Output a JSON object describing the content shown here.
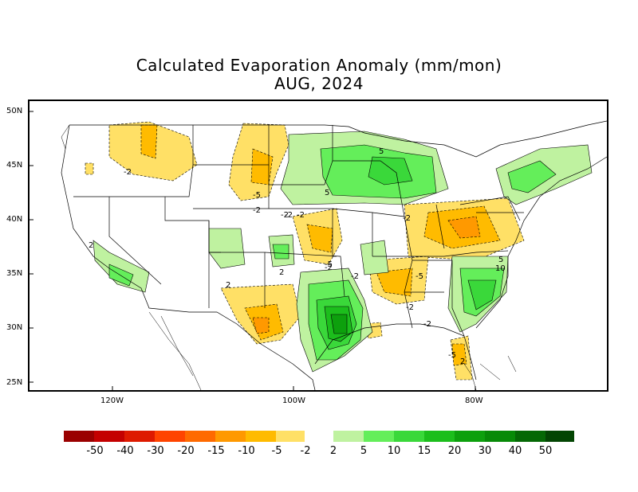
{
  "title": "Calculated Evaporation Anomaly (mm/mon)",
  "subtitle": "AUG, 2024",
  "lat_ticks": [
    "50N",
    "45N",
    "40N",
    "35N",
    "30N",
    "25N"
  ],
  "lon_ticks": [
    "120W",
    "100W",
    "80W"
  ],
  "legend": {
    "negative_colors": [
      "#9a0000",
      "#c40000",
      "#de1a00",
      "#ff4400",
      "#ff6a00",
      "#ff9900",
      "#ffbb00",
      "#ffe066"
    ],
    "positive_colors": [
      "#bff2a0",
      "#64ee5a",
      "#3ad83a",
      "#1cbe1c",
      "#0da00d",
      "#078a07",
      "#056805",
      "#034503"
    ],
    "labels": [
      "-50",
      "-40",
      "-30",
      "-20",
      "-15",
      "-10",
      "-5",
      "-2",
      "2",
      "5",
      "10",
      "15",
      "20",
      "30",
      "40",
      "50"
    ]
  },
  "contour_labels": [
    "-2",
    "-5",
    "-2",
    "-2",
    "-2",
    "-5",
    "5",
    "-2",
    "5",
    "-2",
    "2",
    "-2",
    "2",
    "2",
    "-5",
    "-2",
    "-2",
    "-5",
    "5",
    "10",
    "-2",
    "2"
  ]
}
